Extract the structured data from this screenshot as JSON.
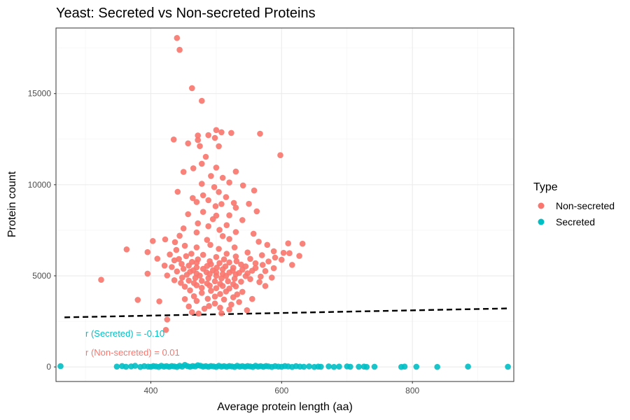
{
  "chart_data": {
    "type": "scatter",
    "title": "Yeast: Secreted vs Non-secreted Proteins",
    "xlabel": "Average protein length (aa)",
    "ylabel": "Protein count",
    "xlim": [
      255,
      955
    ],
    "ylim": [
      -800,
      18600
    ],
    "x_ticks": [
      400,
      600,
      800
    ],
    "y_ticks": [
      0,
      5000,
      10000,
      15000
    ],
    "grid": true,
    "legend": {
      "title": "Type",
      "placement": "right",
      "entries": [
        {
          "label": "Non-secreted",
          "color": "#F8766D"
        },
        {
          "label": "Secreted",
          "color": "#00BFC4"
        }
      ]
    },
    "trend_line": {
      "style": "dashed",
      "color": "#000000",
      "x": [
        268,
        945
      ],
      "y": [
        2720,
        3210
      ]
    },
    "annotations": [
      {
        "text": "r (Secreted) = -0.10",
        "color": "#00BFC4"
      },
      {
        "text": "r (Non-secreted) = 0.01",
        "color": "#F8766D"
      }
    ],
    "series": [
      {
        "name": "Non-secreted",
        "color": "#F8766D",
        "points": [
          [
            440,
            18050
          ],
          [
            444,
            17400
          ],
          [
            463,
            15300
          ],
          [
            478,
            14600
          ],
          [
            500,
            13000
          ],
          [
            508,
            12880
          ],
          [
            523,
            12840
          ],
          [
            567,
            12800
          ],
          [
            488,
            12720
          ],
          [
            435,
            12480
          ],
          [
            472,
            12700
          ],
          [
            457,
            12270
          ],
          [
            498,
            12570
          ],
          [
            472,
            12450
          ],
          [
            475,
            12120
          ],
          [
            504,
            12110
          ],
          [
            598,
            11620
          ],
          [
            484,
            11530
          ],
          [
            478,
            11150
          ],
          [
            500,
            10940
          ],
          [
            465,
            10900
          ],
          [
            450,
            10700
          ],
          [
            530,
            10720
          ],
          [
            492,
            10480
          ],
          [
            510,
            10380
          ],
          [
            520,
            10120
          ],
          [
            478,
            10050
          ],
          [
            541,
            9960
          ],
          [
            497,
            9870
          ],
          [
            504,
            9600
          ],
          [
            480,
            9420
          ],
          [
            515,
            9320
          ],
          [
            441,
            9610
          ],
          [
            558,
            9680
          ],
          [
            464,
            9270
          ],
          [
            488,
            9150
          ],
          [
            470,
            9050
          ],
          [
            527,
            9000
          ],
          [
            508,
            8940
          ],
          [
            550,
            8950
          ],
          [
            499,
            8820
          ],
          [
            530,
            8740
          ],
          [
            562,
            8540
          ],
          [
            480,
            8510
          ],
          [
            457,
            8380
          ],
          [
            520,
            8320
          ],
          [
            500,
            8300
          ],
          [
            495,
            8110
          ],
          [
            540,
            8060
          ],
          [
            472,
            7880
          ],
          [
            516,
            7780
          ],
          [
            450,
            7600
          ],
          [
            488,
            7720
          ],
          [
            505,
            7520
          ],
          [
            530,
            7400
          ],
          [
            470,
            7380
          ],
          [
            557,
            7310
          ],
          [
            444,
            7200
          ],
          [
            510,
            7180
          ],
          [
            422,
            7000
          ],
          [
            520,
            7020
          ],
          [
            486,
            6970
          ],
          [
            565,
            6870
          ],
          [
            403,
            6910
          ],
          [
            437,
            6850
          ],
          [
            610,
            6780
          ],
          [
            632,
            6760
          ],
          [
            491,
            6700
          ],
          [
            452,
            6650
          ],
          [
            578,
            6700
          ],
          [
            363,
            6450
          ],
          [
            470,
            6560
          ],
          [
            528,
            6560
          ],
          [
            439,
            6420
          ],
          [
            504,
            6480
          ],
          [
            588,
            6350
          ],
          [
            395,
            6300
          ],
          [
            548,
            6280
          ],
          [
            603,
            6260
          ],
          [
            612,
            6240
          ],
          [
            462,
            6210
          ],
          [
            516,
            6210
          ],
          [
            429,
            6170
          ],
          [
            480,
            6150
          ],
          [
            570,
            6130
          ],
          [
            627,
            6090
          ],
          [
            454,
            6080
          ],
          [
            530,
            6060
          ],
          [
            500,
            6030
          ],
          [
            590,
            6000
          ],
          [
            410,
            5940
          ],
          [
            443,
            5920
          ],
          [
            552,
            5930
          ],
          [
            472,
            5900
          ],
          [
            512,
            5900
          ],
          [
            600,
            5880
          ],
          [
            436,
            5850
          ],
          [
            490,
            5800
          ],
          [
            531,
            5800
          ],
          [
            580,
            5790
          ],
          [
            463,
            5760
          ],
          [
            520,
            5740
          ],
          [
            470,
            5720
          ],
          [
            505,
            5700
          ],
          [
            560,
            5690
          ],
          [
            447,
            5650
          ],
          [
            492,
            5630
          ],
          [
            538,
            5620
          ],
          [
            571,
            5600
          ],
          [
            616,
            5600
          ],
          [
            421,
            5560
          ],
          [
            458,
            5560
          ],
          [
            486,
            5540
          ],
          [
            514,
            5520
          ],
          [
            545,
            5520
          ],
          [
            432,
            5480
          ],
          [
            470,
            5460
          ],
          [
            501,
            5450
          ],
          [
            526,
            5440
          ],
          [
            560,
            5430
          ],
          [
            588,
            5420
          ],
          [
            450,
            5380
          ],
          [
            480,
            5380
          ],
          [
            510,
            5360
          ],
          [
            540,
            5340
          ],
          [
            465,
            5300
          ],
          [
            495,
            5300
          ],
          [
            525,
            5280
          ],
          [
            555,
            5280
          ],
          [
            575,
            5260
          ],
          [
            440,
            5240
          ],
          [
            460,
            5220
          ],
          [
            485,
            5200
          ],
          [
            500,
            5180
          ],
          [
            520,
            5180
          ],
          [
            535,
            5160
          ],
          [
            548,
            5140
          ],
          [
            470,
            5120
          ],
          [
            490,
            5100
          ],
          [
            510,
            5100
          ],
          [
            530,
            5080
          ],
          [
            455,
            5060
          ],
          [
            425,
            5020
          ],
          [
            475,
            5010
          ],
          [
            500,
            5000
          ],
          [
            515,
            4990
          ],
          [
            545,
            4980
          ],
          [
            568,
            4960
          ],
          [
            448,
            4900
          ],
          [
            468,
            4880
          ],
          [
            488,
            4870
          ],
          [
            508,
            4860
          ],
          [
            528,
            4840
          ],
          [
            552,
            4820
          ],
          [
            585,
            4900
          ],
          [
            395,
            5120
          ],
          [
            436,
            4760
          ],
          [
            458,
            4740
          ],
          [
            478,
            4720
          ],
          [
            498,
            4700
          ],
          [
            518,
            4700
          ],
          [
            538,
            4680
          ],
          [
            566,
            4660
          ],
          [
            446,
            4610
          ],
          [
            466,
            4600
          ],
          [
            486,
            4580
          ],
          [
            506,
            4560
          ],
          [
            526,
            4540
          ],
          [
            470,
            4480
          ],
          [
            490,
            4460
          ],
          [
            510,
            4440
          ],
          [
            530,
            4420
          ],
          [
            575,
            4440
          ],
          [
            324,
            4780
          ],
          [
            452,
            4400
          ],
          [
            478,
            4340
          ],
          [
            500,
            4320
          ],
          [
            520,
            4300
          ],
          [
            460,
            4200
          ],
          [
            492,
            4180
          ],
          [
            515,
            4140
          ],
          [
            540,
            4120
          ],
          [
            478,
            4060
          ],
          [
            506,
            4000
          ],
          [
            532,
            3980
          ],
          [
            466,
            3880
          ],
          [
            498,
            3860
          ],
          [
            526,
            3820
          ],
          [
            487,
            3740
          ],
          [
            512,
            3700
          ],
          [
            555,
            3730
          ],
          [
            380,
            3680
          ],
          [
            413,
            3600
          ],
          [
            452,
            3720
          ],
          [
            470,
            3620
          ],
          [
            535,
            3560
          ],
          [
            498,
            3480
          ],
          [
            523,
            3420
          ],
          [
            458,
            3320
          ],
          [
            489,
            3340
          ],
          [
            506,
            3250
          ],
          [
            482,
            3200
          ],
          [
            520,
            3150
          ],
          [
            547,
            3110
          ],
          [
            463,
            3000
          ],
          [
            508,
            2940
          ],
          [
            473,
            2930
          ],
          [
            425,
            2600
          ],
          [
            423,
            2030
          ]
        ]
      },
      {
        "name": "Secreted",
        "color": "#00BFC4",
        "points": [
          [
            262,
            40
          ],
          [
            348,
            20
          ],
          [
            356,
            50
          ],
          [
            362,
            10
          ],
          [
            370,
            30
          ],
          [
            376,
            60
          ],
          [
            384,
            0
          ],
          [
            390,
            40
          ],
          [
            396,
            20
          ],
          [
            400,
            10
          ],
          [
            404,
            50
          ],
          [
            408,
            30
          ],
          [
            412,
            0
          ],
          [
            416,
            60
          ],
          [
            420,
            20
          ],
          [
            424,
            40
          ],
          [
            428,
            10
          ],
          [
            432,
            50
          ],
          [
            436,
            30
          ],
          [
            440,
            0
          ],
          [
            444,
            60
          ],
          [
            448,
            20
          ],
          [
            452,
            110
          ],
          [
            456,
            40
          ],
          [
            460,
            10
          ],
          [
            464,
            50
          ],
          [
            468,
            30
          ],
          [
            472,
            90
          ],
          [
            476,
            60
          ],
          [
            480,
            20
          ],
          [
            484,
            40
          ],
          [
            488,
            10
          ],
          [
            492,
            50
          ],
          [
            496,
            30
          ],
          [
            500,
            0
          ],
          [
            504,
            60
          ],
          [
            508,
            20
          ],
          [
            512,
            40
          ],
          [
            516,
            10
          ],
          [
            520,
            50
          ],
          [
            524,
            30
          ],
          [
            528,
            0
          ],
          [
            532,
            60
          ],
          [
            536,
            20
          ],
          [
            540,
            40
          ],
          [
            544,
            10
          ],
          [
            548,
            50
          ],
          [
            552,
            30
          ],
          [
            556,
            0
          ],
          [
            560,
            60
          ],
          [
            564,
            20
          ],
          [
            568,
            40
          ],
          [
            572,
            10
          ],
          [
            576,
            50
          ],
          [
            580,
            30
          ],
          [
            585,
            0
          ],
          [
            590,
            40
          ],
          [
            595,
            20
          ],
          [
            600,
            10
          ],
          [
            605,
            50
          ],
          [
            610,
            30
          ],
          [
            616,
            0
          ],
          [
            622,
            40
          ],
          [
            628,
            20
          ],
          [
            634,
            10
          ],
          [
            642,
            30
          ],
          [
            650,
            0
          ],
          [
            656,
            20
          ],
          [
            660,
            10
          ],
          [
            672,
            30
          ],
          [
            680,
            0
          ],
          [
            688,
            20
          ],
          [
            700,
            30
          ],
          [
            705,
            10
          ],
          [
            718,
            10
          ],
          [
            726,
            20
          ],
          [
            730,
            0
          ],
          [
            742,
            10
          ],
          [
            783,
            0
          ],
          [
            788,
            20
          ],
          [
            806,
            10
          ],
          [
            838,
            0
          ],
          [
            885,
            20
          ],
          [
            946,
            10
          ]
        ]
      }
    ]
  }
}
